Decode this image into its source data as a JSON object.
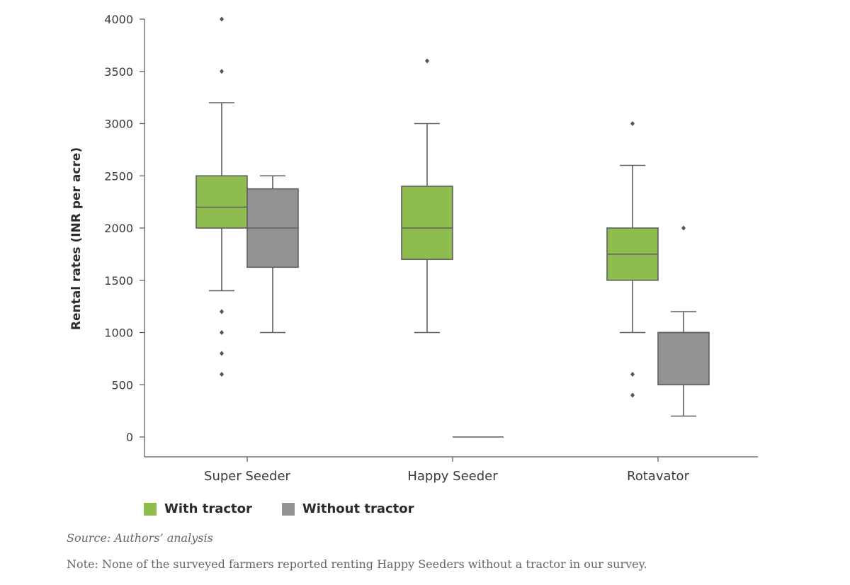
{
  "chart_data": {
    "type": "box",
    "ylabel": "Rental rates (INR per acre)",
    "xlabel": "",
    "ylim": [
      0,
      4000
    ],
    "yticks": [
      0,
      500,
      1000,
      1500,
      2000,
      2500,
      3000,
      3500,
      4000
    ],
    "categories": [
      "Super Seeder",
      "Happy Seeder",
      "Rotavator"
    ],
    "series": [
      {
        "name": "With tractor",
        "color": "#8fbc4f",
        "boxes": [
          {
            "category": "Super Seeder",
            "whisker_low": 1400,
            "q1": 2000,
            "median": 2200,
            "q3": 2500,
            "whisker_high": 3200,
            "outliers": [
              600,
              800,
              1000,
              1200,
              3500,
              4000
            ]
          },
          {
            "category": "Happy Seeder",
            "whisker_low": 1000,
            "q1": 1700,
            "median": 2000,
            "q3": 2400,
            "whisker_high": 3000,
            "outliers": [
              3600
            ]
          },
          {
            "category": "Rotavator",
            "whisker_low": 1000,
            "q1": 1500,
            "median": 1750,
            "q3": 2000,
            "whisker_high": 2600,
            "outliers": [
              400,
              600,
              3000
            ]
          }
        ]
      },
      {
        "name": "Without tractor",
        "color": "#939393",
        "boxes": [
          {
            "category": "Super Seeder",
            "whisker_low": 1000,
            "q1": 1625,
            "median": 2000,
            "q3": 2375,
            "whisker_high": 2500,
            "outliers": []
          },
          {
            "category": "Happy Seeder",
            "whisker_low": 0,
            "q1": 0,
            "median": 0,
            "q3": 0,
            "whisker_high": 0,
            "outliers": []
          },
          {
            "category": "Rotavator",
            "whisker_low": 200,
            "q1": 500,
            "median": 1000,
            "q3": 1000,
            "whisker_high": 1200,
            "outliers": [
              2000
            ]
          }
        ]
      }
    ],
    "legend_placement": "bottom-left"
  },
  "legend": {
    "with_label": "With tractor",
    "without_label": "Without tractor"
  },
  "source": "Source: Authors’ analysis",
  "note": "Note: None of the surveyed farmers reported renting Happy Seeders without a tractor in our survey."
}
